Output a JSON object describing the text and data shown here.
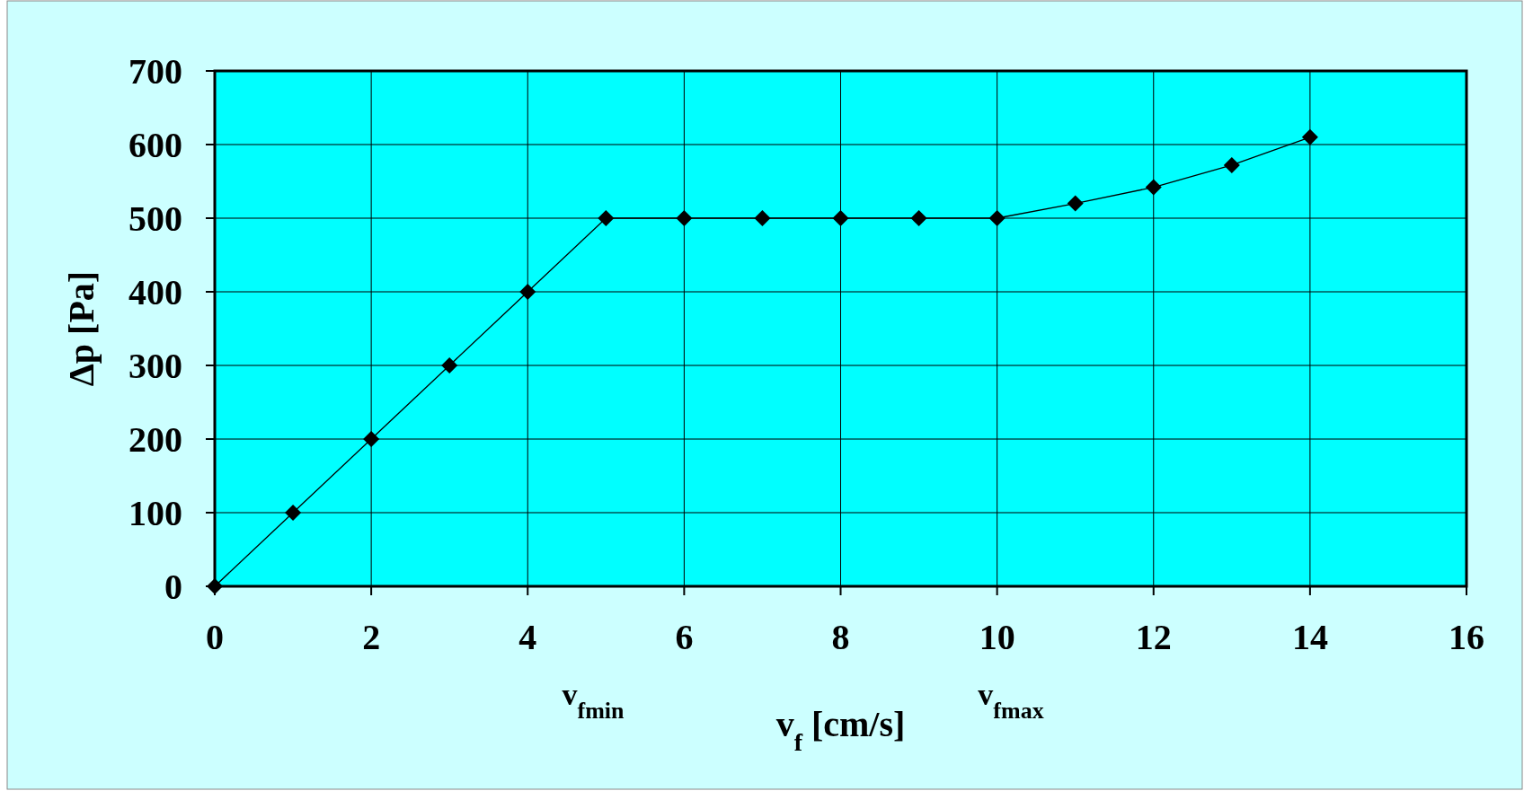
{
  "chart_data": {
    "type": "line",
    "xlabel": "v$_{f}$  [cm/s]",
    "ylabel": "Δp  [Pa]",
    "x": [
      0,
      1,
      2,
      3,
      4,
      5,
      6,
      7,
      8,
      9,
      10,
      11,
      12,
      13,
      14
    ],
    "series": [
      {
        "color": "#000000",
        "values": [
          0,
          100,
          200,
          300,
          400,
          500,
          500,
          500,
          500,
          500,
          500,
          520,
          542,
          572,
          610
        ]
      }
    ],
    "xlim": [
      0,
      16
    ],
    "xticks": [
      0,
      2,
      4,
      6,
      8,
      10,
      12,
      14,
      16
    ],
    "ylim": [
      0,
      700
    ],
    "yticks": [
      0,
      100,
      200,
      300,
      400,
      500,
      600,
      700
    ],
    "grid": true,
    "marker": "diamond",
    "line_style": "solid",
    "annotations": [
      "v$_{fmin}$",
      "v$_{fmax}$"
    ]
  }
}
